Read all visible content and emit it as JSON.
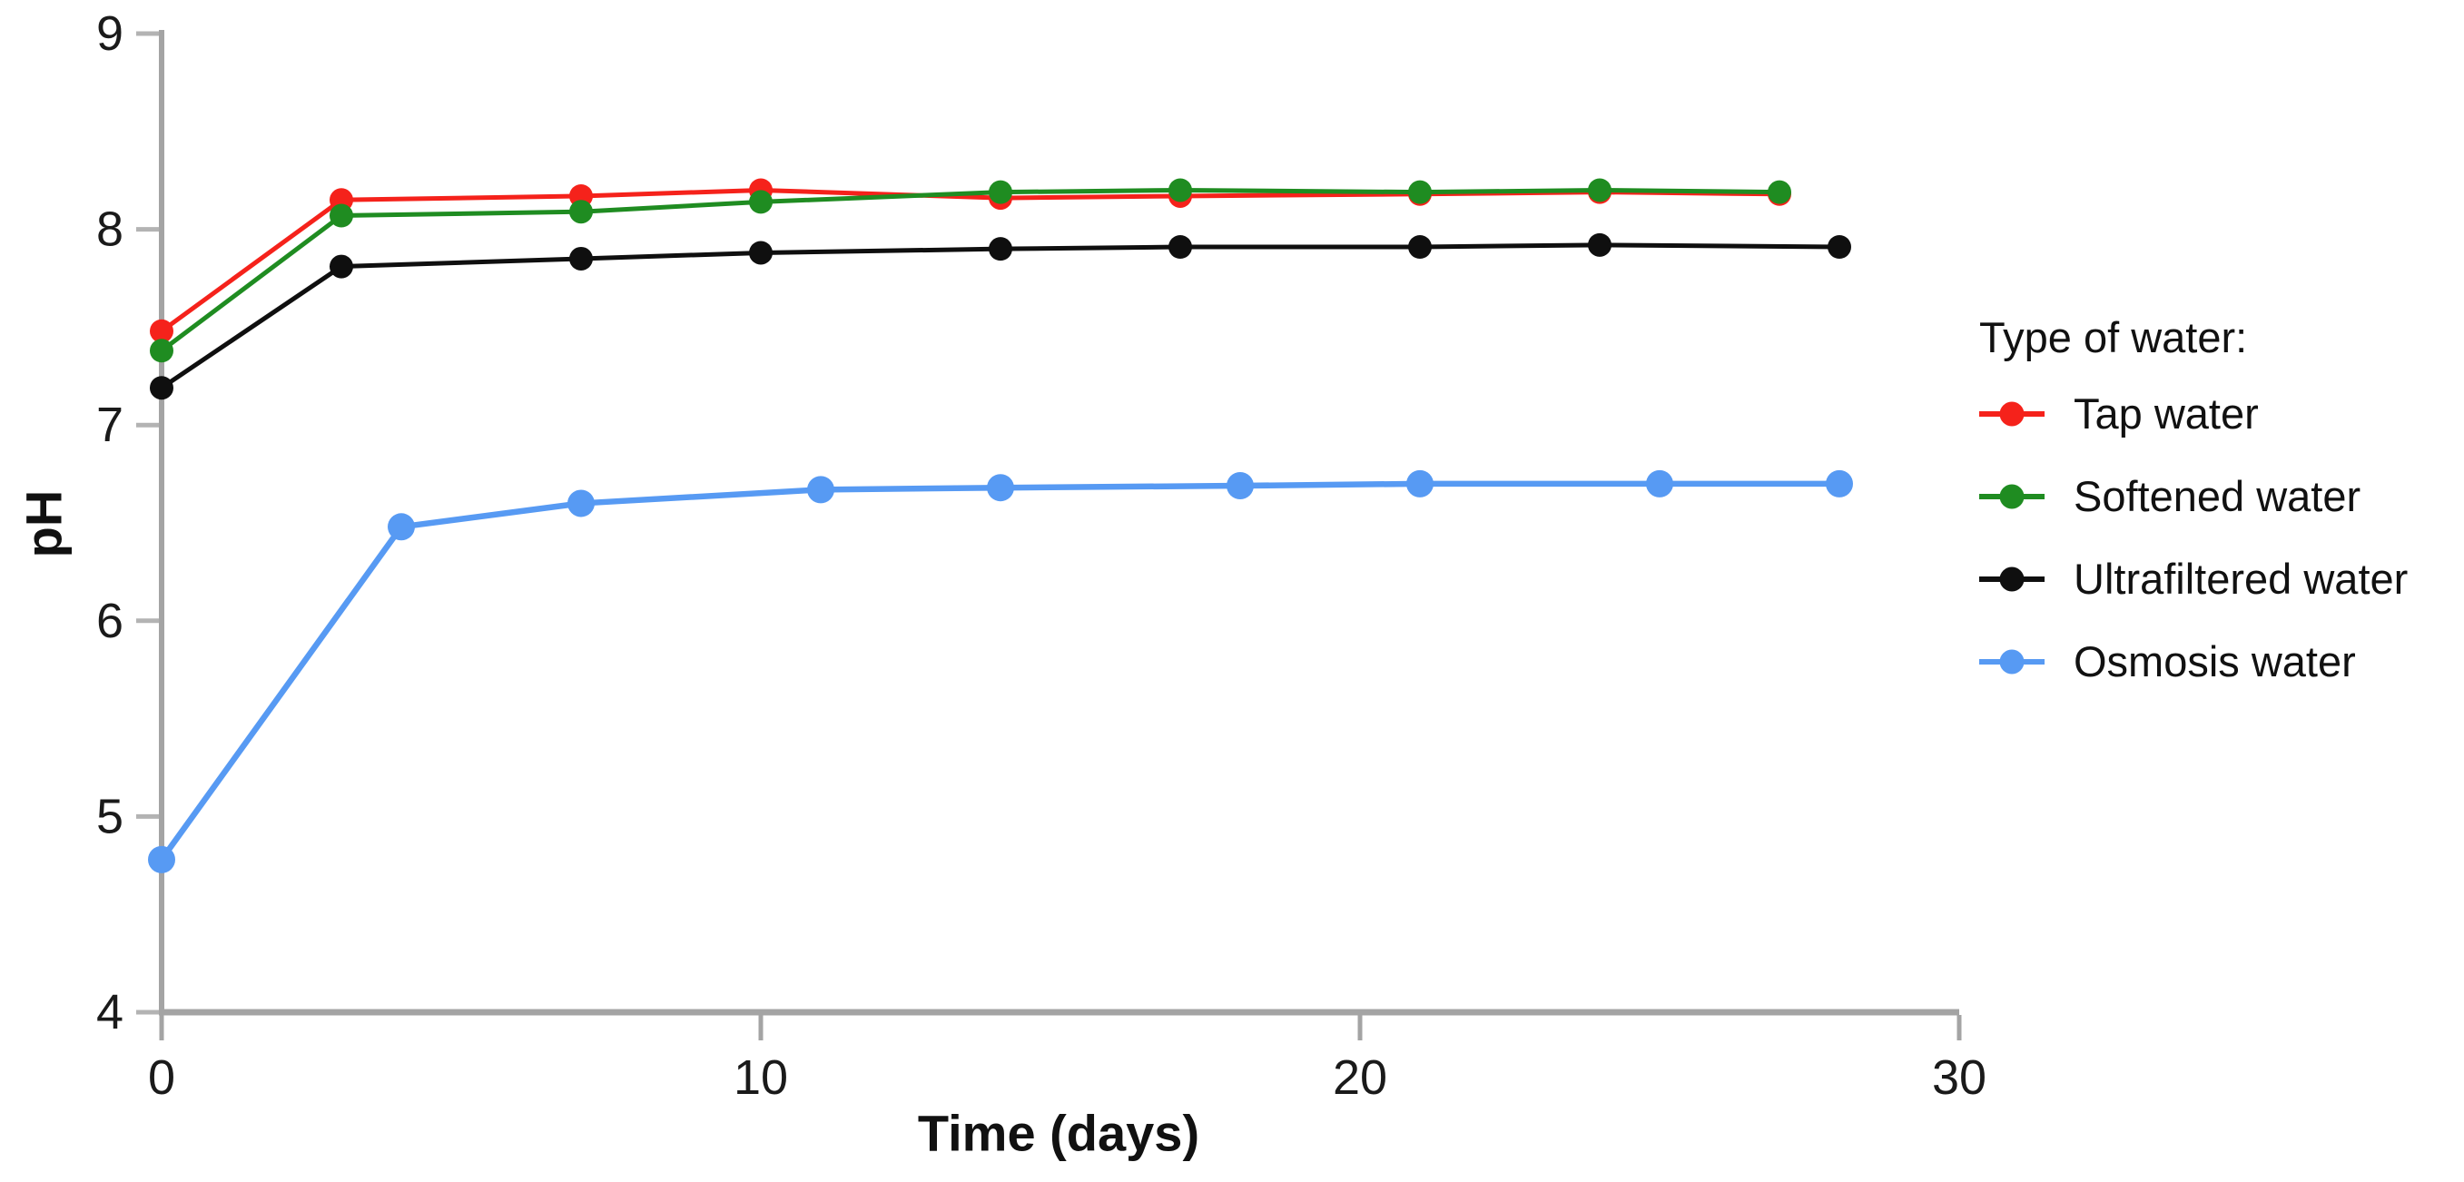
{
  "page": {
    "background": "#ffffff"
  },
  "colors": {
    "axis_line": "#a4a4a4",
    "tick_mark": "#b3b3b3",
    "tick_label": "#1a1a1a",
    "text": "#111111"
  },
  "chart_data": {
    "type": "line",
    "title": "",
    "xlabel": "Time (days)",
    "ylabel": "pH",
    "xlim": [
      0,
      30
    ],
    "ylim": [
      4,
      9
    ],
    "x_ticks": [
      0,
      10,
      20,
      30
    ],
    "y_ticks": [
      4,
      5,
      6,
      7,
      8,
      9
    ],
    "grid": false,
    "legend_title": "Type of water:",
    "legend_position": "right-outside",
    "series": [
      {
        "name": "Tap water",
        "color": "#f5221b",
        "x": [
          0,
          3,
          7,
          10,
          14,
          17,
          21,
          24,
          27
        ],
        "y": [
          7.48,
          8.15,
          8.17,
          8.2,
          8.16,
          8.17,
          8.18,
          8.19,
          8.18
        ]
      },
      {
        "name": "Softened water",
        "color": "#1f8c21",
        "x": [
          0,
          3,
          7,
          10,
          14,
          17,
          21,
          24,
          27
        ],
        "y": [
          7.38,
          8.07,
          8.09,
          8.14,
          8.19,
          8.2,
          8.19,
          8.2,
          8.19
        ]
      },
      {
        "name": "Ultrafiltered water",
        "color": "#0f0f0f",
        "x": [
          0,
          3,
          7,
          10,
          14,
          17,
          21,
          24,
          28
        ],
        "y": [
          7.19,
          7.81,
          7.85,
          7.88,
          7.9,
          7.91,
          7.91,
          7.92,
          7.91
        ]
      },
      {
        "name": "Osmosis water",
        "color": "#579af3",
        "x": [
          0,
          4,
          7,
          11,
          14,
          18,
          21,
          25,
          28
        ],
        "y": [
          4.78,
          6.48,
          6.6,
          6.67,
          6.68,
          6.69,
          6.7,
          6.7,
          6.7
        ]
      }
    ]
  }
}
